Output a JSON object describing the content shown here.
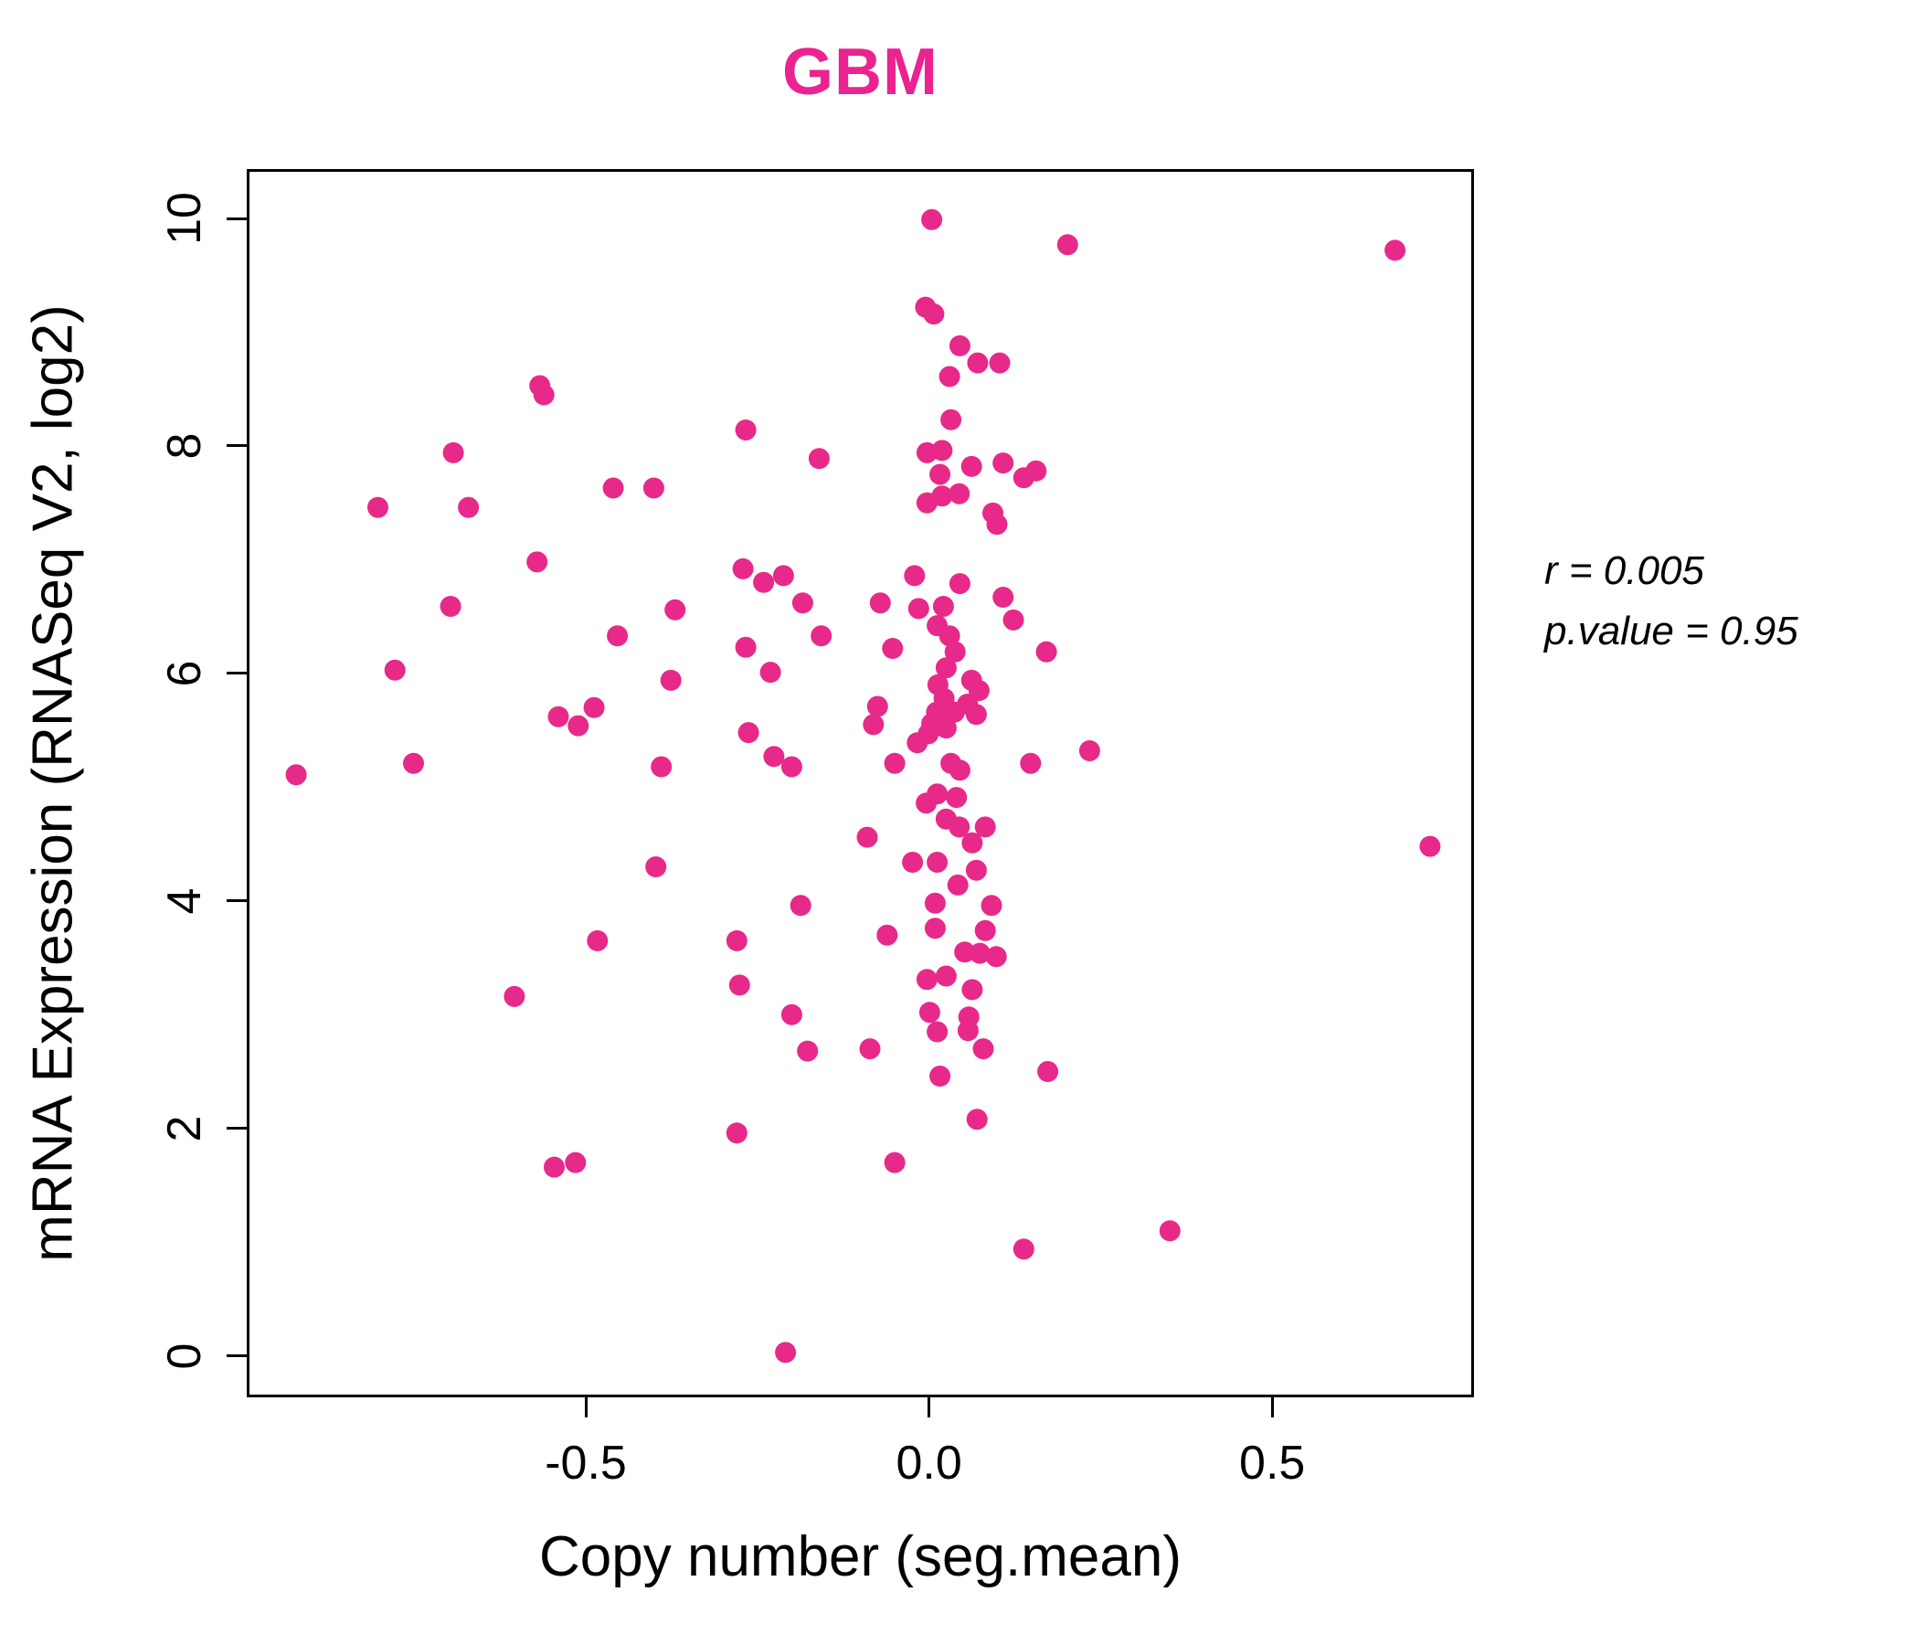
{
  "title": "GBM",
  "annotation": {
    "line1": "r = 0.005",
    "line2": "p.value = 0.95"
  },
  "chart_data": {
    "type": "scatter",
    "title": "GBM",
    "xlabel": "Copy number (seg.mean)",
    "ylabel": "mRNA Expression (RNASeq V2, log2)",
    "xlim": [
      -0.99,
      0.79
    ],
    "ylim": [
      -0.34,
      10.41
    ],
    "x_ticks": [
      -0.5,
      0.0,
      0.5
    ],
    "x_tick_labels": [
      "-0.5",
      "0.0",
      "0.5"
    ],
    "y_ticks": [
      0,
      2,
      4,
      6,
      8,
      10
    ],
    "y_tick_labels": [
      "0",
      "2",
      "4",
      "6",
      "8",
      "10"
    ],
    "grid": false,
    "legend": "none",
    "point_color": "#E7298A",
    "title_color": "#EA2390",
    "point_radius": 11.5,
    "stats": {
      "r": 0.005,
      "p_value": 0.95
    },
    "points": [
      [
        -0.567,
        8.53
      ],
      [
        -0.561,
        8.45
      ],
      [
        -0.693,
        7.94
      ],
      [
        -0.267,
        8.14
      ],
      [
        -0.16,
        7.89
      ],
      [
        -0.46,
        7.63
      ],
      [
        -0.401,
        7.63
      ],
      [
        -0.803,
        7.46
      ],
      [
        -0.671,
        7.46
      ],
      [
        -0.571,
        6.98
      ],
      [
        -0.697,
        6.59
      ],
      [
        -0.778,
        6.03
      ],
      [
        -0.751,
        5.21
      ],
      [
        -0.922,
        5.11
      ],
      [
        -0.454,
        6.33
      ],
      [
        -0.37,
        6.56
      ],
      [
        -0.54,
        5.62
      ],
      [
        -0.511,
        5.54
      ],
      [
        -0.488,
        5.7
      ],
      [
        -0.39,
        5.18
      ],
      [
        -0.271,
        6.92
      ],
      [
        -0.241,
        6.8
      ],
      [
        -0.212,
        6.86
      ],
      [
        -0.184,
        6.62
      ],
      [
        -0.157,
        6.33
      ],
      [
        -0.267,
        6.23
      ],
      [
        -0.231,
        6.01
      ],
      [
        -0.376,
        5.94
      ],
      [
        -0.263,
        5.48
      ],
      [
        -0.226,
        5.27
      ],
      [
        -0.2,
        5.18
      ],
      [
        -0.398,
        4.3
      ],
      [
        -0.483,
        3.65
      ],
      [
        -0.604,
        3.16
      ],
      [
        -0.187,
        3.96
      ],
      [
        -0.28,
        3.65
      ],
      [
        -0.276,
        3.26
      ],
      [
        -0.2,
        3.0
      ],
      [
        -0.177,
        2.68
      ],
      [
        -0.546,
        1.66
      ],
      [
        -0.515,
        1.7
      ],
      [
        -0.28,
        1.96
      ],
      [
        -0.209,
        0.03
      ],
      [
        0.004,
        9.99
      ],
      [
        0.202,
        9.77
      ],
      [
        -0.005,
        9.22
      ],
      [
        0.007,
        9.16
      ],
      [
        0.045,
        8.88
      ],
      [
        0.03,
        8.61
      ],
      [
        0.071,
        8.73
      ],
      [
        0.103,
        8.73
      ],
      [
        0.032,
        8.23
      ],
      [
        -0.003,
        7.94
      ],
      [
        0.019,
        7.96
      ],
      [
        0.062,
        7.82
      ],
      [
        0.108,
        7.85
      ],
      [
        0.016,
        7.75
      ],
      [
        0.138,
        7.72
      ],
      [
        0.156,
        7.78
      ],
      [
        -0.003,
        7.5
      ],
      [
        0.019,
        7.56
      ],
      [
        0.044,
        7.58
      ],
      [
        0.093,
        7.41
      ],
      [
        0.099,
        7.31
      ],
      [
        -0.021,
        6.86
      ],
      [
        0.045,
        6.79
      ],
      [
        -0.071,
        6.62
      ],
      [
        0.108,
        6.67
      ],
      [
        0.123,
        6.47
      ],
      [
        -0.015,
        6.57
      ],
      [
        0.021,
        6.59
      ],
      [
        0.012,
        6.42
      ],
      [
        0.03,
        6.33
      ],
      [
        0.038,
        6.19
      ],
      [
        -0.053,
        6.22
      ],
      [
        0.171,
        6.19
      ],
      [
        0.025,
        6.05
      ],
      [
        0.062,
        5.94
      ],
      [
        0.073,
        5.85
      ],
      [
        0.056,
        5.73
      ],
      [
        0.069,
        5.64
      ],
      [
        0.013,
        5.9
      ],
      [
        0.022,
        5.78
      ],
      [
        0.011,
        5.66
      ],
      [
        0.037,
        5.66
      ],
      [
        -0.075,
        5.71
      ],
      [
        -0.081,
        5.55
      ],
      [
        0.004,
        5.56
      ],
      [
        0.025,
        5.52
      ],
      [
        -0.017,
        5.39
      ],
      [
        -0.001,
        5.47
      ],
      [
        -0.05,
        5.21
      ],
      [
        0.032,
        5.21
      ],
      [
        0.045,
        5.15
      ],
      [
        0.148,
        5.21
      ],
      [
        0.234,
        5.32
      ],
      [
        0.012,
        4.94
      ],
      [
        0.04,
        4.91
      ],
      [
        -0.004,
        4.86
      ],
      [
        0.025,
        4.72
      ],
      [
        0.044,
        4.65
      ],
      [
        0.082,
        4.65
      ],
      [
        0.063,
        4.51
      ],
      [
        -0.09,
        4.56
      ],
      [
        -0.024,
        4.34
      ],
      [
        0.012,
        4.34
      ],
      [
        0.069,
        4.27
      ],
      [
        0.042,
        4.14
      ],
      [
        0.009,
        3.98
      ],
      [
        0.091,
        3.96
      ],
      [
        0.009,
        3.76
      ],
      [
        0.082,
        3.74
      ],
      [
        -0.061,
        3.7
      ],
      [
        0.052,
        3.55
      ],
      [
        0.074,
        3.54
      ],
      [
        0.098,
        3.51
      ],
      [
        -0.003,
        3.31
      ],
      [
        0.025,
        3.34
      ],
      [
        0.063,
        3.22
      ],
      [
        0.001,
        3.02
      ],
      [
        0.012,
        2.85
      ],
      [
        0.058,
        2.98
      ],
      [
        0.057,
        2.86
      ],
      [
        0.079,
        2.7
      ],
      [
        -0.086,
        2.7
      ],
      [
        0.016,
        2.46
      ],
      [
        0.173,
        2.5
      ],
      [
        0.07,
        2.08
      ],
      [
        -0.05,
        1.7
      ],
      [
        0.138,
        0.94
      ],
      [
        0.679,
        9.72
      ],
      [
        0.73,
        4.48
      ],
      [
        0.351,
        1.1
      ]
    ]
  }
}
